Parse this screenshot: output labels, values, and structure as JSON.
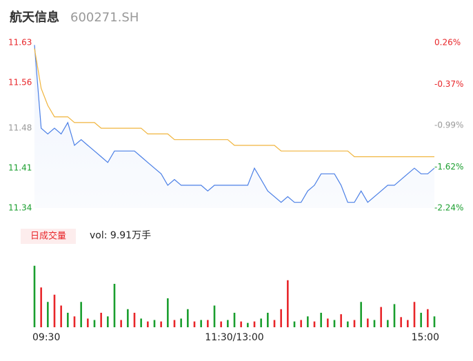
{
  "chart_data": {
    "type": "intraday",
    "title": "航天信息",
    "subtitle": "600271.SH",
    "volume_label": "日成交量",
    "volume_text": "vol: 9.91万手",
    "ylim": [
      11.34,
      11.63
    ],
    "yticks": [
      11.63,
      11.56,
      11.48,
      11.41,
      11.34
    ],
    "ytick_colors": [
      "#e8262a",
      "#e8262a",
      "#999999",
      "#1a9e2e",
      "#1a9e2e"
    ],
    "y2lim": [
      -2.24,
      0.26
    ],
    "y2ticks": [
      {
        "value": 0.26,
        "label": "0.26%"
      },
      {
        "value": -0.37,
        "label": "-0.37%"
      },
      {
        "value": -0.99,
        "label": "-0.99%"
      },
      {
        "value": -1.62,
        "label": "-1.62%"
      },
      {
        "value": -2.24,
        "label": "-2.24%"
      }
    ],
    "xlim": [
      0,
      60
    ],
    "xticks": [
      {
        "value": 0,
        "label": "09:30"
      },
      {
        "value": 30,
        "label": "11:30/13:00"
      },
      {
        "value": 60,
        "label": "15:00"
      }
    ],
    "series": [
      {
        "name": "price",
        "color": "#4a7fe6",
        "values": [
          11.626,
          11.48,
          11.47,
          11.48,
          11.47,
          11.49,
          11.45,
          11.46,
          11.45,
          11.44,
          11.43,
          11.42,
          11.44,
          11.44,
          11.44,
          11.44,
          11.43,
          11.42,
          11.41,
          11.4,
          11.38,
          11.39,
          11.38,
          11.38,
          11.38,
          11.38,
          11.37,
          11.38,
          11.38,
          11.38,
          11.38,
          11.38,
          11.38,
          11.41,
          11.39,
          11.37,
          11.36,
          11.35,
          11.36,
          11.35,
          11.35,
          11.37,
          11.38,
          11.4,
          11.4,
          11.4,
          11.38,
          11.35,
          11.35,
          11.37,
          11.35,
          11.36,
          11.37,
          11.38,
          11.38,
          11.39,
          11.4,
          11.41,
          11.4,
          11.4,
          11.41
        ]
      },
      {
        "name": "average",
        "color": "#f0b43c",
        "values": [
          11.62,
          11.55,
          11.52,
          11.5,
          11.5,
          11.5,
          11.49,
          11.49,
          11.49,
          11.49,
          11.48,
          11.48,
          11.48,
          11.48,
          11.48,
          11.48,
          11.48,
          11.47,
          11.47,
          11.47,
          11.47,
          11.46,
          11.46,
          11.46,
          11.46,
          11.46,
          11.46,
          11.46,
          11.46,
          11.46,
          11.45,
          11.45,
          11.45,
          11.45,
          11.45,
          11.45,
          11.45,
          11.44,
          11.44,
          11.44,
          11.44,
          11.44,
          11.44,
          11.44,
          11.44,
          11.44,
          11.44,
          11.44,
          11.43,
          11.43,
          11.43,
          11.43,
          11.43,
          11.43,
          11.43,
          11.43,
          11.43,
          11.43,
          11.43,
          11.43,
          11.43
        ]
      }
    ],
    "volume_lim": [
      0,
      100
    ],
    "volume": [
      85,
      55,
      35,
      45,
      30,
      20,
      15,
      35,
      12,
      10,
      20,
      15,
      60,
      10,
      25,
      20,
      12,
      8,
      10,
      8,
      40,
      10,
      12,
      25,
      8,
      10,
      10,
      30,
      8,
      10,
      20,
      8,
      6,
      8,
      12,
      20,
      10,
      25,
      65,
      8,
      10,
      15,
      8,
      20,
      12,
      10,
      18,
      8,
      10,
      35,
      12,
      10,
      28,
      10,
      32,
      14,
      10,
      35,
      20,
      25,
      15
    ],
    "volume_colors": [
      "#1a9e2e",
      "#e8262a",
      "#1a9e2e",
      "#e8262a",
      "#e8262a",
      "#1a9e2e",
      "#e8262a",
      "#1a9e2e",
      "#e8262a",
      "#1a9e2e",
      "#e8262a",
      "#1a9e2e",
      "#1a9e2e",
      "#e8262a",
      "#1a9e2e",
      "#e8262a",
      "#1a9e2e",
      "#e8262a",
      "#1a9e2e",
      "#e8262a",
      "#1a9e2e",
      "#e8262a",
      "#1a9e2e",
      "#1a9e2e",
      "#e8262a",
      "#1a9e2e",
      "#e8262a",
      "#1a9e2e",
      "#e8262a",
      "#1a9e2e",
      "#1a9e2e",
      "#e8262a",
      "#1a9e2e",
      "#e8262a",
      "#1a9e2e",
      "#1a9e2e",
      "#e8262a",
      "#e8262a",
      "#e8262a",
      "#1a9e2e",
      "#e8262a",
      "#1a9e2e",
      "#e8262a",
      "#1a9e2e",
      "#e8262a",
      "#1a9e2e",
      "#e8262a",
      "#1a9e2e",
      "#e8262a",
      "#1a9e2e",
      "#e8262a",
      "#1a9e2e",
      "#e8262a",
      "#1a9e2e",
      "#1a9e2e",
      "#e8262a",
      "#e8262a",
      "#e8262a",
      "#1a9e2e",
      "#e8262a",
      "#1a9e2e"
    ]
  }
}
